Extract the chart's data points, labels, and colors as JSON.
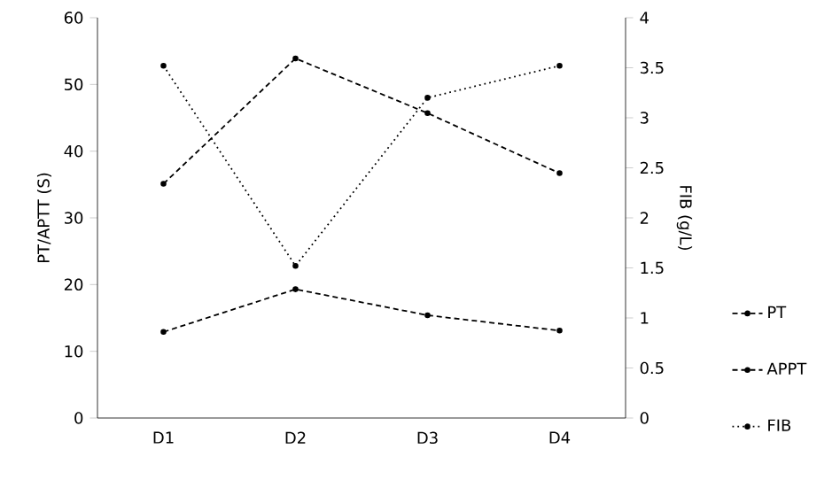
{
  "chart_data": {
    "type": "line",
    "ylabel": "PT/APTT (S)",
    "y2label": "FIB (g/L)",
    "categories": [
      "D1",
      "D2",
      "D3",
      "D4"
    ],
    "series": [
      {
        "name": "PT",
        "color": "#000000",
        "values": [
          12.9,
          19.3,
          15.4,
          13.1
        ],
        "line_style": "dashed"
      },
      {
        "name": "APPT",
        "color": "#000000",
        "values": [
          35.1,
          53.9,
          45.7,
          36.7
        ],
        "line_style": "dashed"
      },
      {
        "name": "FIB",
        "color": "#000000",
        "values": [
          3.52,
          1.52,
          3.2,
          3.52
        ],
        "axis": "y2",
        "line_style": "dotted"
      }
    ],
    "ylim": [
      0,
      60
    ],
    "yticks": [
      0,
      10,
      20,
      30,
      40,
      50,
      60
    ],
    "y2lim": [
      0,
      4
    ],
    "y2ticks": [
      0,
      0.5,
      1,
      1.5,
      2,
      2.5,
      3,
      3.5,
      4
    ],
    "marker": "circle",
    "grid": false,
    "legend": "right"
  }
}
